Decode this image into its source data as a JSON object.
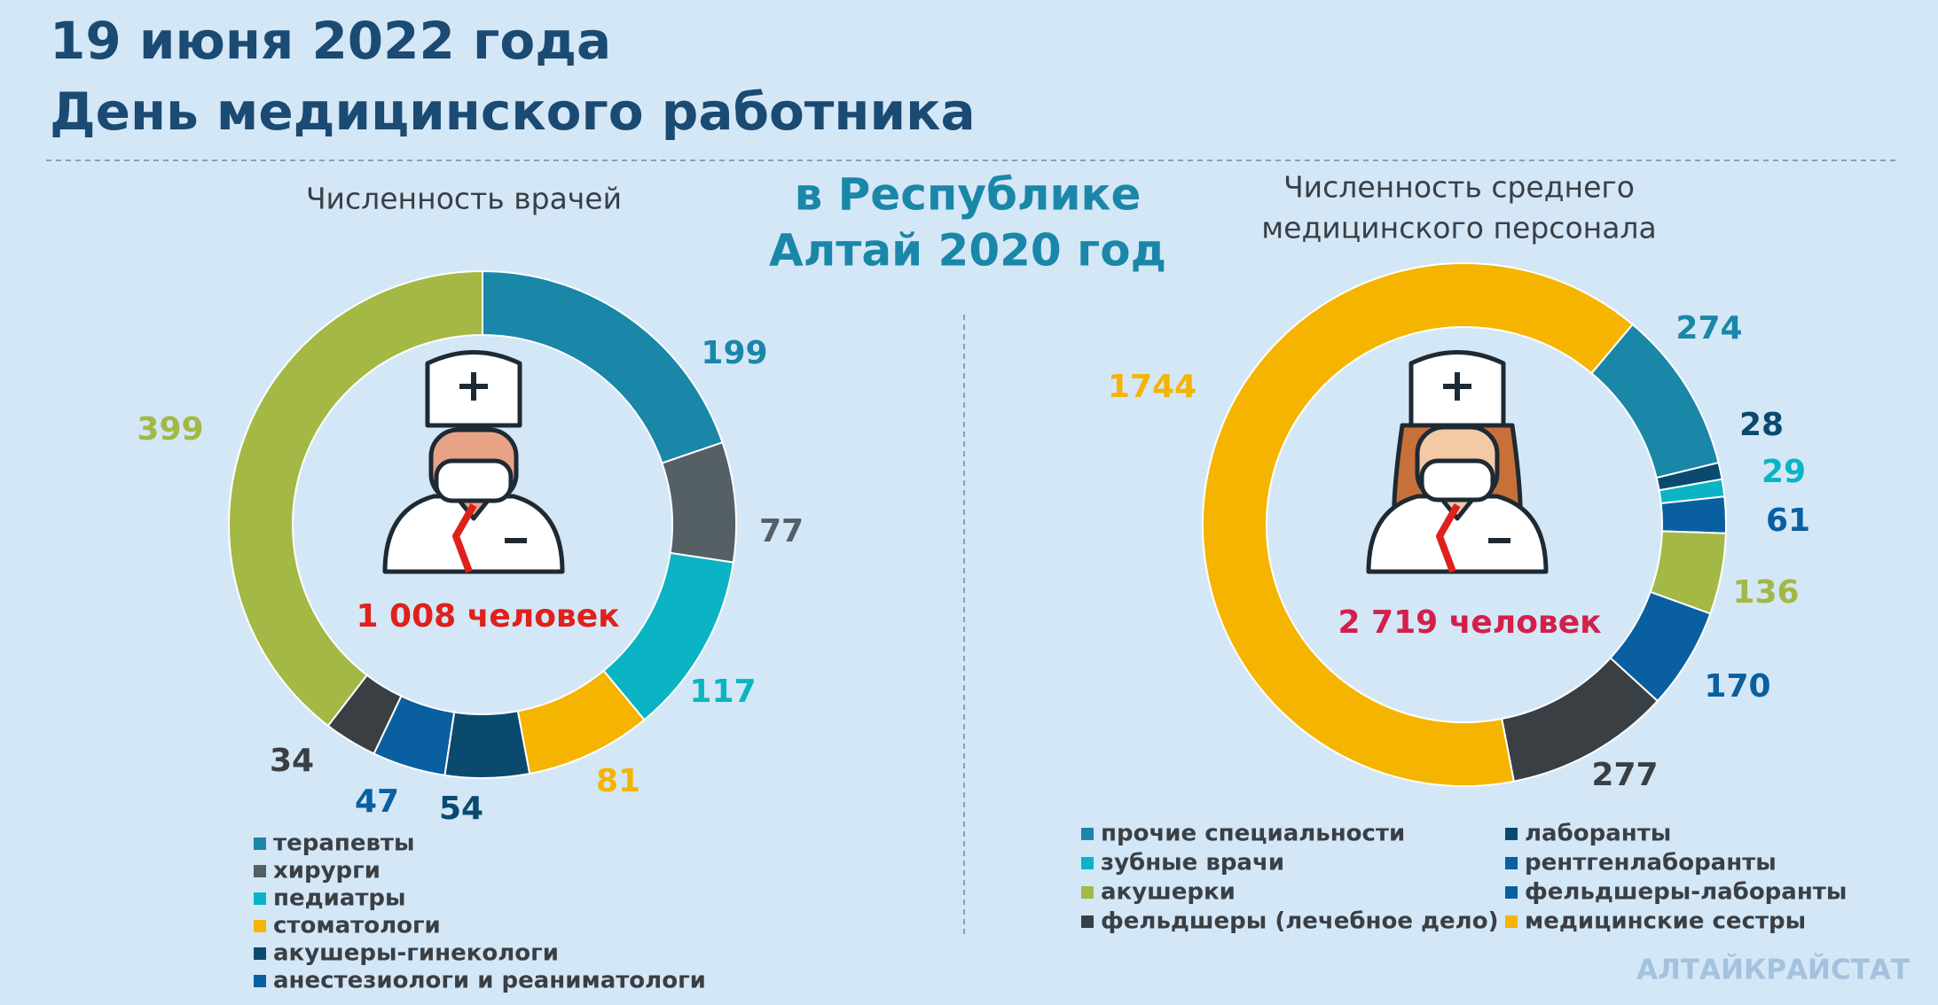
{
  "header": {
    "title_lines": [
      "19 июня 2022 года",
      "День медицинского работника"
    ],
    "region_lines": [
      "в Республике",
      "Алтай 2020 год"
    ]
  },
  "chart_data": [
    {
      "type": "pie",
      "donut": true,
      "title_lines": [
        "Численность врачей"
      ],
      "categories": [
        "терапевты",
        "хирурги",
        "педиатры",
        "стоматологи",
        "акушеры-гинекологи",
        "анестезиологи и реаниматологи",
        null,
        null
      ],
      "values": [
        199,
        77,
        117,
        81,
        54,
        47,
        34,
        399
      ],
      "colors": [
        "#1a87a8",
        "#555f66",
        "#0ab4c4",
        "#f5b400",
        "#0b4a6f",
        "#0a5fa0",
        "#3a3f44",
        "#a3b845"
      ],
      "total_label": "1 008 человек"
    },
    {
      "type": "pie",
      "donut": true,
      "title_lines": [
        "Численность среднего",
        "медицинского персонала"
      ],
      "categories": [
        "прочие специальности",
        "лаборанты",
        "зубные врачи",
        "рентгенлаборанты",
        "акушерки",
        "фельдшеры-лаборанты",
        "фельдшеры (лечебное дело)",
        "медицинские сестры"
      ],
      "values": [
        274,
        28,
        29,
        61,
        136,
        170,
        277,
        1744
      ],
      "colors": [
        "#1a87a8",
        "#0b4a6f",
        "#0ab4c4",
        "#0a5fa0",
        "#a3b845",
        "#0a5fa0",
        "#3a3f44",
        "#f5b400"
      ],
      "total_label": "2 719 человек"
    }
  ],
  "footer": {
    "source": "АЛТАЙКРАЙСТАТ"
  }
}
